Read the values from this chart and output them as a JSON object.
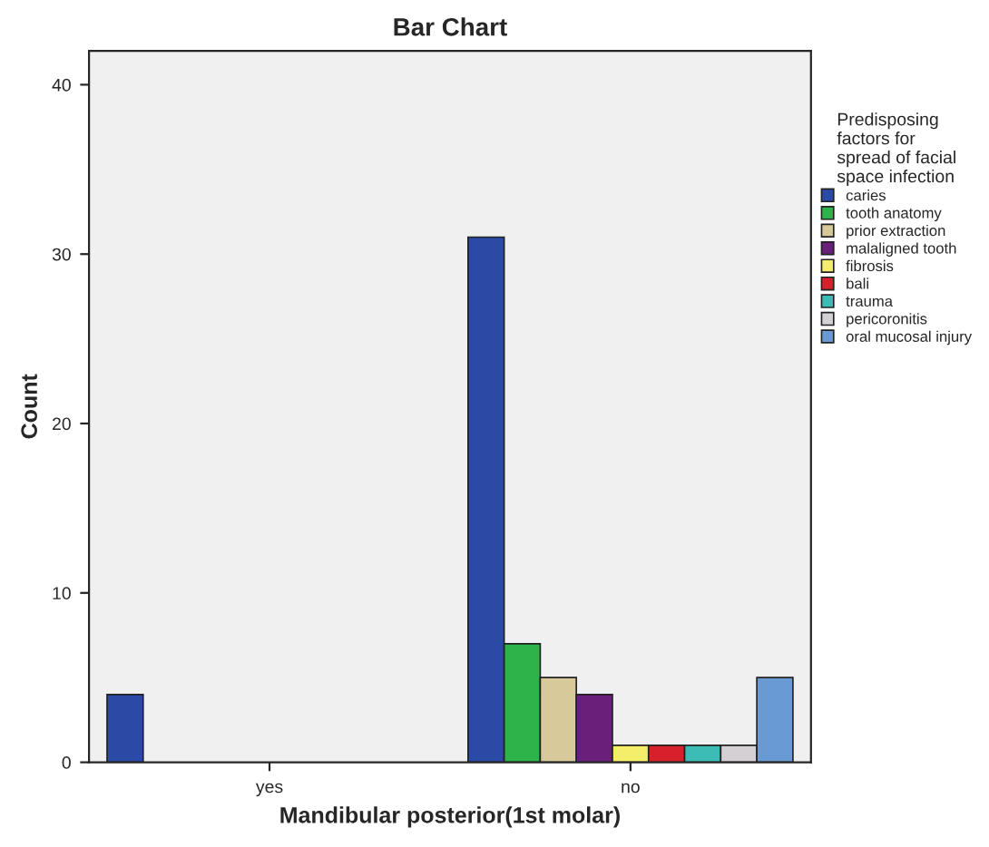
{
  "chart_data": {
    "type": "bar",
    "title": "Bar Chart",
    "xlabel": "Mandibular posterior(1st molar)",
    "ylabel": "Count",
    "legend_title": "Predisposing\nfactors for\nspread of facial\nspace infection",
    "categories": [
      "yes",
      "no"
    ],
    "series": [
      {
        "name": "caries",
        "color": "#2a4aa6",
        "values": [
          4,
          31
        ]
      },
      {
        "name": "tooth anatomy",
        "color": "#2db34a",
        "values": [
          null,
          7
        ]
      },
      {
        "name": "prior extraction",
        "color": "#d8c99a",
        "values": [
          null,
          5
        ]
      },
      {
        "name": "malaligned tooth",
        "color": "#6a1f7a",
        "values": [
          null,
          4
        ]
      },
      {
        "name": "fibrosis",
        "color": "#f5ee6a",
        "values": [
          null,
          1
        ]
      },
      {
        "name": "bali",
        "color": "#d8202c",
        "values": [
          null,
          1
        ]
      },
      {
        "name": "trauma",
        "color": "#3cbcb4",
        "values": [
          null,
          1
        ]
      },
      {
        "name": "pericoronitis",
        "color": "#d4d0d4",
        "values": [
          null,
          1
        ]
      },
      {
        "name": "oral mucosal injury",
        "color": "#6a9ad4",
        "values": [
          null,
          5
        ]
      }
    ],
    "ylim": [
      0,
      42
    ],
    "yticks": [
      0,
      10,
      20,
      30,
      40
    ],
    "grid": false,
    "legend": "right"
  }
}
